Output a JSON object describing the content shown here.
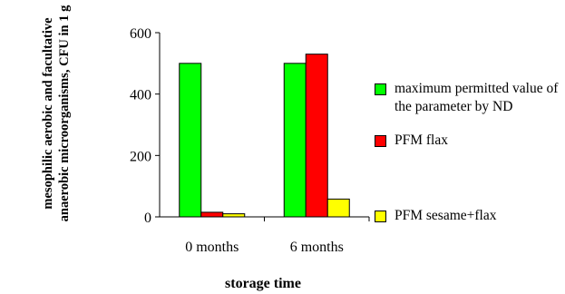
{
  "chart_data": {
    "type": "bar",
    "title": "",
    "xlabel": "storage time",
    "ylabel": "mesophilic aerobic and facultative anaerobic microorganisms, CFU in 1 g",
    "categories": [
      "0 months",
      "6 months"
    ],
    "series": [
      {
        "name": "maximum permitted value of the parameter by ND",
        "color": "#00ff00",
        "values": [
          500,
          500
        ]
      },
      {
        "name": "PFM flax",
        "color": "#ff0000",
        "values": [
          15,
          530
        ]
      },
      {
        "name": "PFM sesame+flax",
        "color": "#ffff00",
        "values": [
          10,
          58
        ]
      }
    ],
    "ylim": [
      0,
      600
    ],
    "yticks": [
      0,
      200,
      400,
      600
    ],
    "grid": false,
    "legend_position": "right"
  }
}
